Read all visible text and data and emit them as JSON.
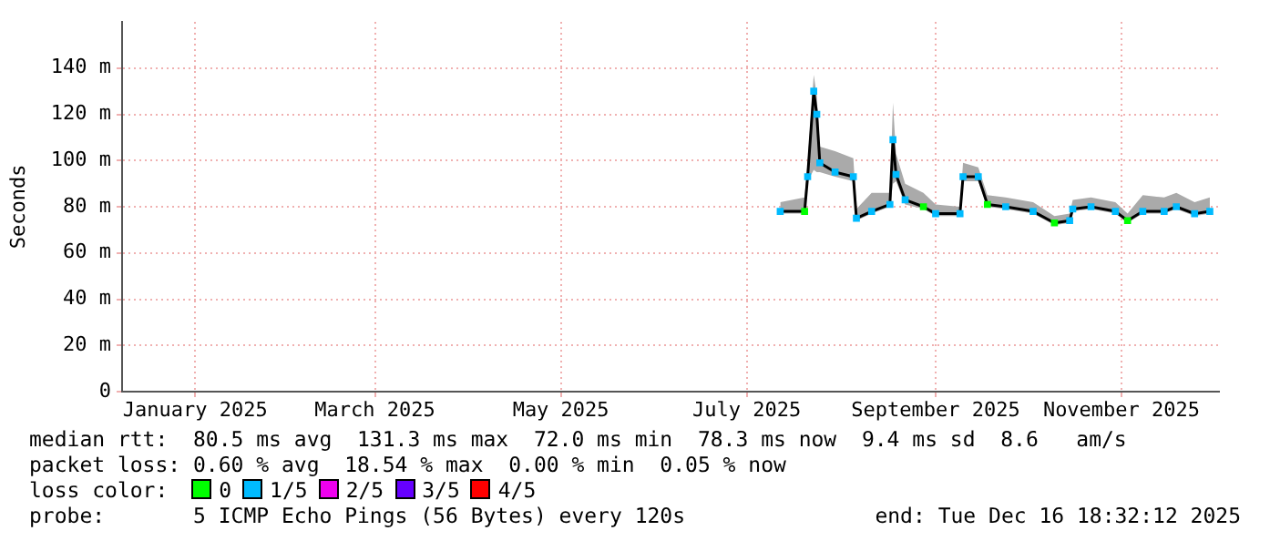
{
  "chart_data": {
    "type": "line",
    "ylabel": "Seconds",
    "legend_title": "loss color:",
    "legend": "bottom",
    "grid": true,
    "line_style": "solid",
    "x": [
      "2025-07-27",
      "2025-08-04",
      "2025-08-05",
      "2025-08-07",
      "2025-08-08",
      "2025-08-09",
      "2025-08-14",
      "2025-08-20",
      "2025-08-21",
      "2025-08-26",
      "2025-09-01",
      "2025-09-02",
      "2025-09-03",
      "2025-09-06",
      "2025-09-12",
      "2025-09-16",
      "2025-09-24",
      "2025-09-25",
      "2025-09-30",
      "2025-10-03",
      "2025-10-09",
      "2025-10-18",
      "2025-10-25",
      "2025-10-30",
      "2025-10-31",
      "2025-11-06",
      "2025-11-14",
      "2025-11-18",
      "2025-11-23",
      "2025-11-30",
      "2025-12-04",
      "2025-12-10",
      "2025-12-15"
    ],
    "xlim": [
      "2024-12-23",
      "2025-12-18"
    ],
    "xticks": [
      {
        "value": "2025-01-16",
        "label": "January 2025"
      },
      {
        "value": "2025-03-16",
        "label": "March 2025"
      },
      {
        "value": "2025-05-16",
        "label": "May 2025"
      },
      {
        "value": "2025-07-16",
        "label": "July 2025"
      },
      {
        "value": "2025-09-16",
        "label": "September 2025"
      },
      {
        "value": "2025-11-16",
        "label": "November 2025"
      }
    ],
    "ylim": [
      0,
      160
    ],
    "yticks": [
      0,
      {
        "value": 20,
        "label": "20 m"
      },
      {
        "value": 40,
        "label": "40 m"
      },
      {
        "value": 60,
        "label": "60 m"
      },
      {
        "value": 80,
        "label": "80 m"
      },
      {
        "value": 100,
        "label": "100 m"
      },
      {
        "value": 120,
        "label": "120 m"
      },
      {
        "value": 140,
        "label": "140 m"
      }
    ],
    "series": [
      {
        "color": "#000000",
        "values": [
          78,
          78,
          93,
          130,
          120,
          99,
          95,
          93,
          75,
          78,
          81,
          109,
          94,
          83,
          80,
          77,
          77,
          93,
          93,
          81,
          80,
          78,
          73,
          74,
          79,
          80,
          78,
          74,
          78,
          78,
          80,
          77,
          78
        ],
        "lower": [
          77,
          77,
          91,
          96,
          95,
          95,
          93,
          91,
          74,
          77,
          80,
          90,
          91,
          81,
          79,
          76,
          76,
          91,
          91,
          80,
          79,
          77,
          72,
          73,
          78,
          79,
          77,
          73,
          77,
          77,
          79,
          76,
          77
        ],
        "upper": [
          82,
          84,
          99,
          137,
          128,
          106,
          104,
          101,
          79,
          86,
          86,
          125,
          103,
          90,
          86,
          81,
          80,
          99,
          97,
          85,
          84,
          82,
          76,
          77,
          83,
          84,
          82,
          77,
          85,
          84,
          86,
          82,
          84
        ]
      },
      {
        "type": "scatter",
        "marker": "square",
        "name": "0",
        "color": "#00ff00",
        "values": [
          null,
          78,
          null,
          null,
          null,
          null,
          null,
          null,
          null,
          null,
          null,
          null,
          null,
          null,
          80,
          null,
          null,
          null,
          null,
          81,
          null,
          null,
          73,
          null,
          null,
          null,
          null,
          74,
          null,
          null,
          null,
          null,
          null
        ]
      },
      {
        "type": "scatter",
        "marker": "square",
        "name": "1/5",
        "color": "#00bbff",
        "values": [
          78,
          null,
          93,
          130,
          120,
          99,
          95,
          93,
          75,
          78,
          81,
          109,
          94,
          83,
          null,
          77,
          77,
          93,
          93,
          null,
          80,
          78,
          null,
          74,
          79,
          80,
          78,
          null,
          78,
          78,
          80,
          77,
          78
        ]
      },
      {
        "type": "scatter",
        "marker": "square",
        "name": "2/5",
        "color": "#ee00ee",
        "values": [
          null,
          null,
          null,
          null,
          null,
          null,
          null,
          null,
          null,
          null,
          null,
          null,
          null,
          null,
          null,
          null,
          null,
          null,
          null,
          null,
          null,
          null,
          null,
          null,
          null,
          null,
          null,
          null,
          null,
          null,
          null,
          null,
          null
        ]
      },
      {
        "type": "scatter",
        "marker": "square",
        "name": "3/5",
        "color": "#6600ff",
        "values": [
          null,
          null,
          null,
          null,
          null,
          null,
          null,
          null,
          null,
          null,
          null,
          null,
          null,
          null,
          null,
          null,
          null,
          null,
          null,
          null,
          null,
          null,
          null,
          null,
          null,
          null,
          null,
          null,
          null,
          null,
          null,
          null,
          null
        ]
      },
      {
        "type": "scatter",
        "marker": "square",
        "name": "4/5",
        "color": "#ff0000",
        "values": [
          null,
          null,
          null,
          null,
          null,
          null,
          null,
          null,
          null,
          null,
          null,
          null,
          null,
          null,
          null,
          null,
          null,
          null,
          null,
          null,
          null,
          null,
          null,
          null,
          null,
          null,
          null,
          null,
          null,
          null,
          null,
          null,
          null
        ]
      }
    ],
    "annotations": [
      "median rtt:  80.5 ms avg  131.3 ms max  72.0 ms min  78.3 ms now  9.4 ms sd  8.6   am/s",
      "packet loss: 0.60 % avg  18.54 % max  0.00 % min  0.05 % now",
      "probe:       5 ICMP Echo Pings (56 Bytes) every 120s",
      "end: Tue Dec 16 18:32:12 2025"
    ]
  }
}
